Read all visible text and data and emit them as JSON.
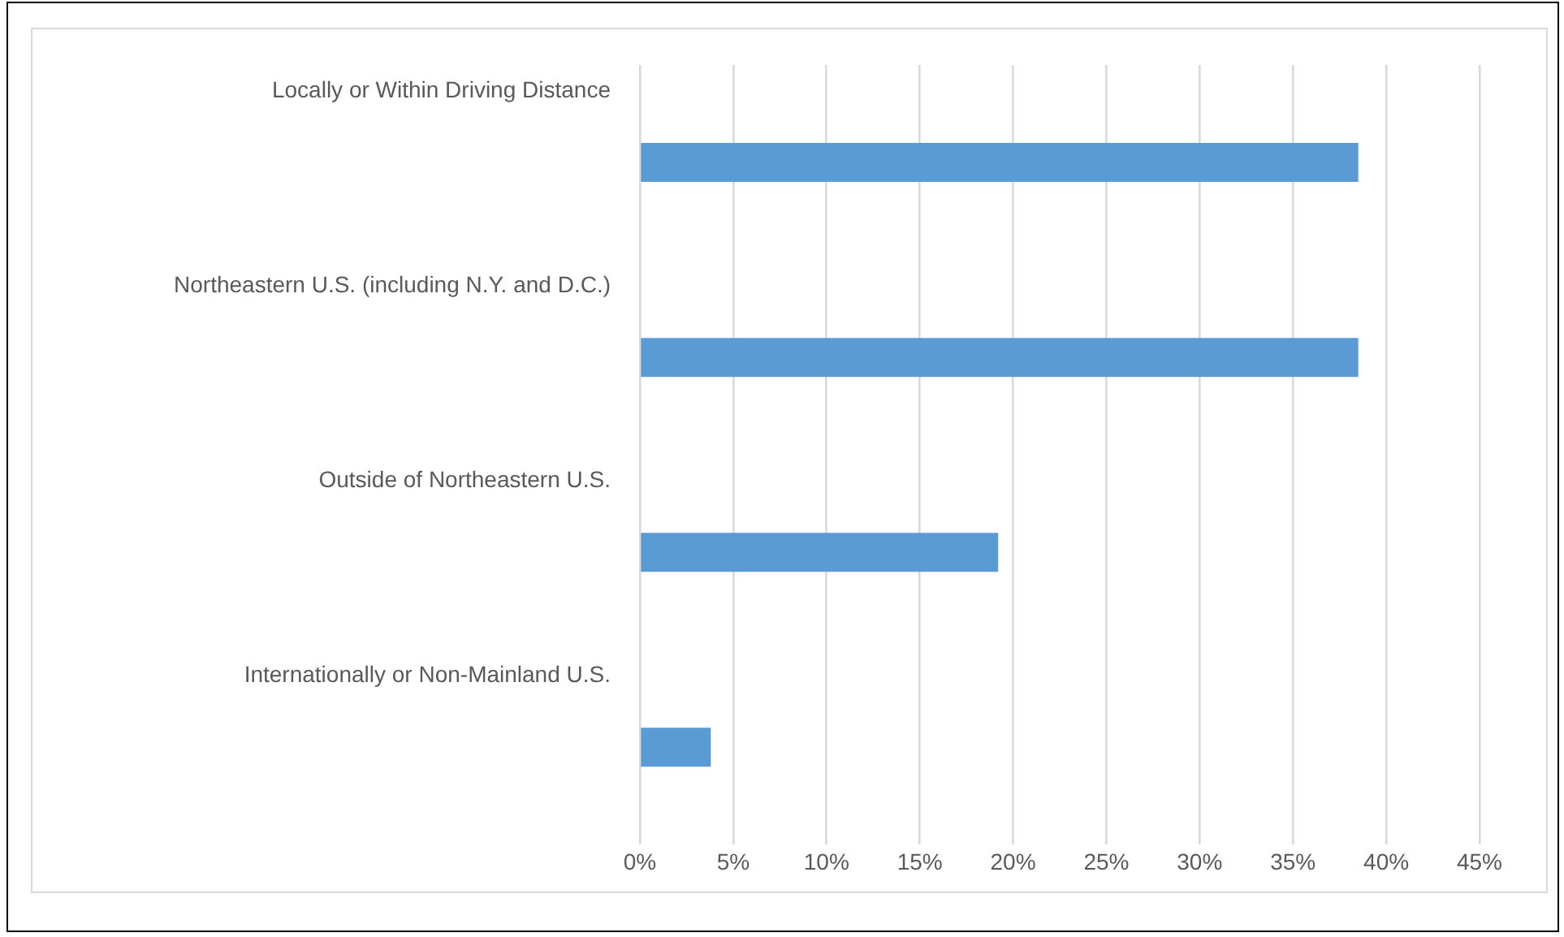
{
  "chart_data": {
    "type": "bar",
    "orientation": "horizontal",
    "categories": [
      "Locally or Within Driving Distance",
      "Northeastern U.S. (including N.Y. and D.C.)",
      "Outside of Northeastern U.S.",
      "Internationally or Non-Mainland U.S."
    ],
    "values": [
      38.5,
      38.5,
      19.2,
      3.8
    ],
    "color": "#5b9bd5",
    "xlim": [
      0,
      45
    ],
    "xticks": [
      {
        "value": 0,
        "label": "0%"
      },
      {
        "value": 5,
        "label": "5%"
      },
      {
        "value": 10,
        "label": "10%"
      },
      {
        "value": 15,
        "label": "15%"
      },
      {
        "value": 20,
        "label": "20%"
      },
      {
        "value": 25,
        "label": "25%"
      },
      {
        "value": 30,
        "label": "30%"
      },
      {
        "value": 35,
        "label": "35%"
      },
      {
        "value": 40,
        "label": "40%"
      },
      {
        "value": 45,
        "label": "45%"
      }
    ],
    "grid": "x",
    "legend": false
  }
}
